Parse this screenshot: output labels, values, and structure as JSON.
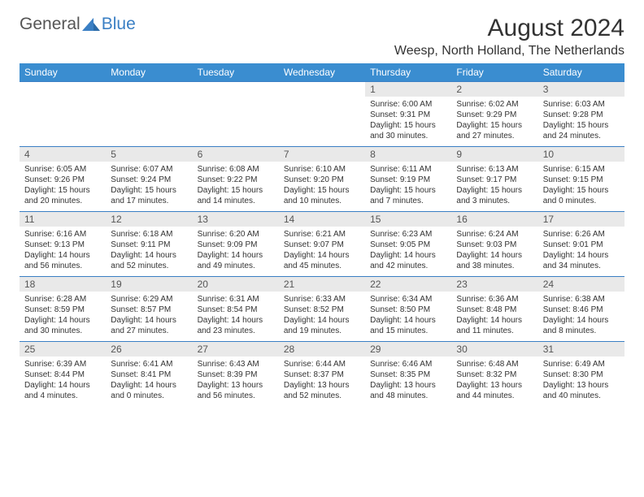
{
  "logo": {
    "part1": "General",
    "part2": "Blue"
  },
  "title": "August 2024",
  "subtitle": "Weesp, North Holland, The Netherlands",
  "colors": {
    "header_bg": "#3a8dd0",
    "header_text": "#ffffff",
    "daynum_bg": "#e9e9e9",
    "border_top": "#3a7fc4",
    "logo_blue": "#3a7fc4",
    "text": "#333333"
  },
  "dayNames": [
    "Sunday",
    "Monday",
    "Tuesday",
    "Wednesday",
    "Thursday",
    "Friday",
    "Saturday"
  ],
  "weeks": [
    [
      {
        "num": "",
        "sunrise": "",
        "sunset": "",
        "daylight": ""
      },
      {
        "num": "",
        "sunrise": "",
        "sunset": "",
        "daylight": ""
      },
      {
        "num": "",
        "sunrise": "",
        "sunset": "",
        "daylight": ""
      },
      {
        "num": "",
        "sunrise": "",
        "sunset": "",
        "daylight": ""
      },
      {
        "num": "1",
        "sunrise": "Sunrise: 6:00 AM",
        "sunset": "Sunset: 9:31 PM",
        "daylight": "Daylight: 15 hours and 30 minutes."
      },
      {
        "num": "2",
        "sunrise": "Sunrise: 6:02 AM",
        "sunset": "Sunset: 9:29 PM",
        "daylight": "Daylight: 15 hours and 27 minutes."
      },
      {
        "num": "3",
        "sunrise": "Sunrise: 6:03 AM",
        "sunset": "Sunset: 9:28 PM",
        "daylight": "Daylight: 15 hours and 24 minutes."
      }
    ],
    [
      {
        "num": "4",
        "sunrise": "Sunrise: 6:05 AM",
        "sunset": "Sunset: 9:26 PM",
        "daylight": "Daylight: 15 hours and 20 minutes."
      },
      {
        "num": "5",
        "sunrise": "Sunrise: 6:07 AM",
        "sunset": "Sunset: 9:24 PM",
        "daylight": "Daylight: 15 hours and 17 minutes."
      },
      {
        "num": "6",
        "sunrise": "Sunrise: 6:08 AM",
        "sunset": "Sunset: 9:22 PM",
        "daylight": "Daylight: 15 hours and 14 minutes."
      },
      {
        "num": "7",
        "sunrise": "Sunrise: 6:10 AM",
        "sunset": "Sunset: 9:20 PM",
        "daylight": "Daylight: 15 hours and 10 minutes."
      },
      {
        "num": "8",
        "sunrise": "Sunrise: 6:11 AM",
        "sunset": "Sunset: 9:19 PM",
        "daylight": "Daylight: 15 hours and 7 minutes."
      },
      {
        "num": "9",
        "sunrise": "Sunrise: 6:13 AM",
        "sunset": "Sunset: 9:17 PM",
        "daylight": "Daylight: 15 hours and 3 minutes."
      },
      {
        "num": "10",
        "sunrise": "Sunrise: 6:15 AM",
        "sunset": "Sunset: 9:15 PM",
        "daylight": "Daylight: 15 hours and 0 minutes."
      }
    ],
    [
      {
        "num": "11",
        "sunrise": "Sunrise: 6:16 AM",
        "sunset": "Sunset: 9:13 PM",
        "daylight": "Daylight: 14 hours and 56 minutes."
      },
      {
        "num": "12",
        "sunrise": "Sunrise: 6:18 AM",
        "sunset": "Sunset: 9:11 PM",
        "daylight": "Daylight: 14 hours and 52 minutes."
      },
      {
        "num": "13",
        "sunrise": "Sunrise: 6:20 AM",
        "sunset": "Sunset: 9:09 PM",
        "daylight": "Daylight: 14 hours and 49 minutes."
      },
      {
        "num": "14",
        "sunrise": "Sunrise: 6:21 AM",
        "sunset": "Sunset: 9:07 PM",
        "daylight": "Daylight: 14 hours and 45 minutes."
      },
      {
        "num": "15",
        "sunrise": "Sunrise: 6:23 AM",
        "sunset": "Sunset: 9:05 PM",
        "daylight": "Daylight: 14 hours and 42 minutes."
      },
      {
        "num": "16",
        "sunrise": "Sunrise: 6:24 AM",
        "sunset": "Sunset: 9:03 PM",
        "daylight": "Daylight: 14 hours and 38 minutes."
      },
      {
        "num": "17",
        "sunrise": "Sunrise: 6:26 AM",
        "sunset": "Sunset: 9:01 PM",
        "daylight": "Daylight: 14 hours and 34 minutes."
      }
    ],
    [
      {
        "num": "18",
        "sunrise": "Sunrise: 6:28 AM",
        "sunset": "Sunset: 8:59 PM",
        "daylight": "Daylight: 14 hours and 30 minutes."
      },
      {
        "num": "19",
        "sunrise": "Sunrise: 6:29 AM",
        "sunset": "Sunset: 8:57 PM",
        "daylight": "Daylight: 14 hours and 27 minutes."
      },
      {
        "num": "20",
        "sunrise": "Sunrise: 6:31 AM",
        "sunset": "Sunset: 8:54 PM",
        "daylight": "Daylight: 14 hours and 23 minutes."
      },
      {
        "num": "21",
        "sunrise": "Sunrise: 6:33 AM",
        "sunset": "Sunset: 8:52 PM",
        "daylight": "Daylight: 14 hours and 19 minutes."
      },
      {
        "num": "22",
        "sunrise": "Sunrise: 6:34 AM",
        "sunset": "Sunset: 8:50 PM",
        "daylight": "Daylight: 14 hours and 15 minutes."
      },
      {
        "num": "23",
        "sunrise": "Sunrise: 6:36 AM",
        "sunset": "Sunset: 8:48 PM",
        "daylight": "Daylight: 14 hours and 11 minutes."
      },
      {
        "num": "24",
        "sunrise": "Sunrise: 6:38 AM",
        "sunset": "Sunset: 8:46 PM",
        "daylight": "Daylight: 14 hours and 8 minutes."
      }
    ],
    [
      {
        "num": "25",
        "sunrise": "Sunrise: 6:39 AM",
        "sunset": "Sunset: 8:44 PM",
        "daylight": "Daylight: 14 hours and 4 minutes."
      },
      {
        "num": "26",
        "sunrise": "Sunrise: 6:41 AM",
        "sunset": "Sunset: 8:41 PM",
        "daylight": "Daylight: 14 hours and 0 minutes."
      },
      {
        "num": "27",
        "sunrise": "Sunrise: 6:43 AM",
        "sunset": "Sunset: 8:39 PM",
        "daylight": "Daylight: 13 hours and 56 minutes."
      },
      {
        "num": "28",
        "sunrise": "Sunrise: 6:44 AM",
        "sunset": "Sunset: 8:37 PM",
        "daylight": "Daylight: 13 hours and 52 minutes."
      },
      {
        "num": "29",
        "sunrise": "Sunrise: 6:46 AM",
        "sunset": "Sunset: 8:35 PM",
        "daylight": "Daylight: 13 hours and 48 minutes."
      },
      {
        "num": "30",
        "sunrise": "Sunrise: 6:48 AM",
        "sunset": "Sunset: 8:32 PM",
        "daylight": "Daylight: 13 hours and 44 minutes."
      },
      {
        "num": "31",
        "sunrise": "Sunrise: 6:49 AM",
        "sunset": "Sunset: 8:30 PM",
        "daylight": "Daylight: 13 hours and 40 minutes."
      }
    ]
  ]
}
